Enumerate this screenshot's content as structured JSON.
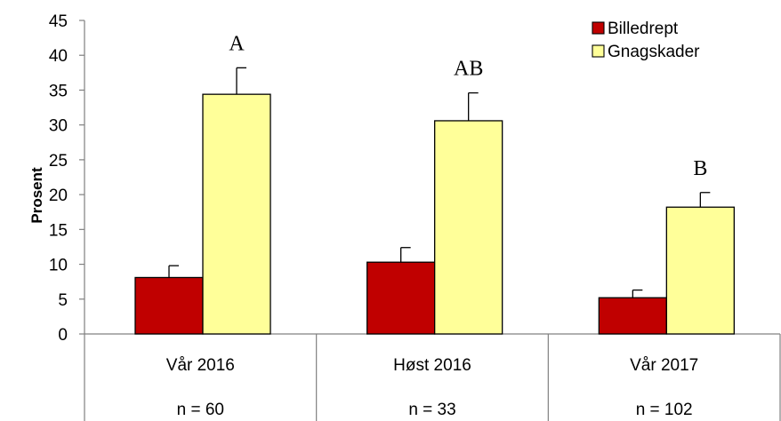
{
  "chart_data": {
    "type": "bar",
    "ylabel": "Prosent",
    "ylim": [
      0,
      45
    ],
    "yticks": [
      0,
      5,
      10,
      15,
      20,
      25,
      30,
      35,
      40,
      45
    ],
    "categories": [
      "Vår 2016",
      "Høst 2016",
      "Vår 2017"
    ],
    "sample_sizes": [
      "n = 60",
      "n = 33",
      "n = 102"
    ],
    "series": [
      {
        "name": "Billedrept",
        "color": "#c00000",
        "values": [
          8.1,
          10.3,
          5.2
        ],
        "errors": [
          1.7,
          2.1,
          1.1
        ]
      },
      {
        "name": "Gnagskader",
        "color": "#ffff99",
        "values": [
          34.4,
          30.6,
          18.2
        ],
        "errors": [
          3.8,
          4.0,
          2.1
        ]
      }
    ],
    "annotations": [
      "A",
      "AB",
      "B"
    ],
    "legend_position": "top-right",
    "grid": false
  }
}
